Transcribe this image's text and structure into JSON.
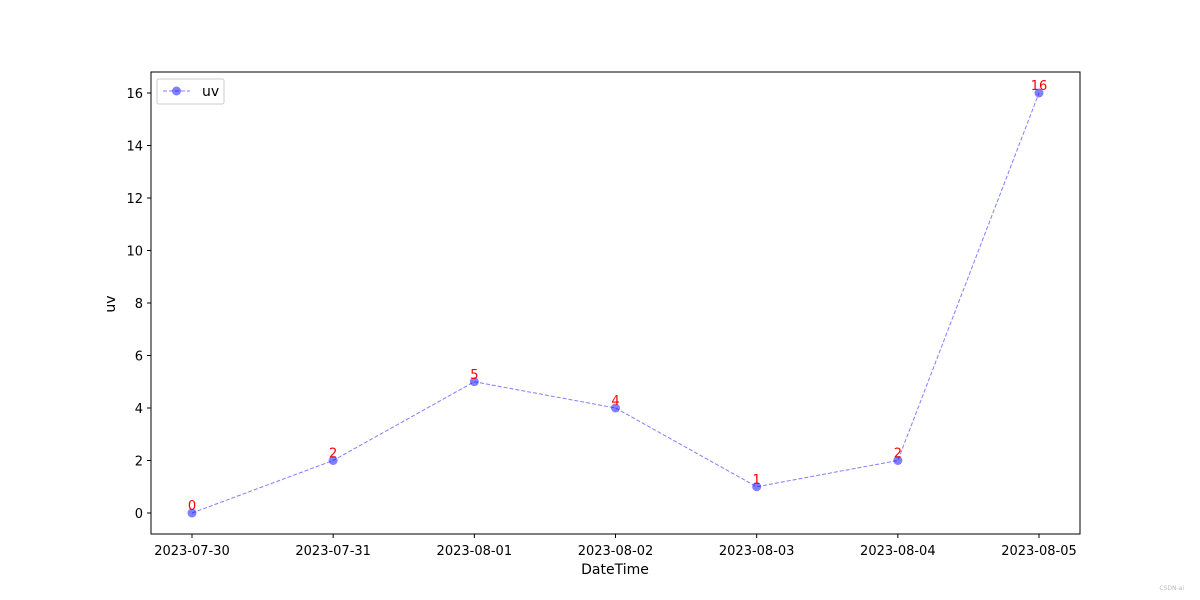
{
  "chart_data": {
    "type": "line",
    "x": [
      "2023-07-30",
      "2023-07-31",
      "2023-08-01",
      "2023-08-02",
      "2023-08-03",
      "2023-08-04",
      "2023-08-05"
    ],
    "series": [
      {
        "name": "uv",
        "values": [
          0,
          2,
          5,
          4,
          1,
          2,
          16
        ]
      }
    ],
    "data_labels": [
      "0",
      "2",
      "5",
      "4",
      "1",
      "2",
      "16"
    ],
    "xlabel": "DateTime",
    "ylabel": "uv",
    "ylim": [
      -0.8,
      16.8
    ],
    "yticks": [
      0,
      2,
      4,
      6,
      8,
      10,
      12,
      14,
      16
    ],
    "grid": false,
    "legend_position": "top-left",
    "line_style": "dashed",
    "marker": "circle"
  },
  "colors": {
    "series_line": "#0000ff",
    "data_label": "#ff0000"
  },
  "watermark": "CSDN-ai"
}
